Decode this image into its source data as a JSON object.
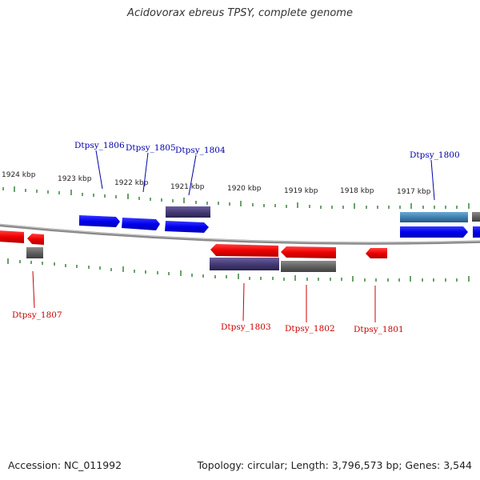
{
  "title": "Acidovorax ebreus TPSY, complete genome",
  "footer": {
    "accession": "Accession: NC_011992",
    "summary": "Topology: circular; Length: 3,796,573 bp; Genes: 3,544"
  },
  "colors": {
    "forward_gene": "#0000ee",
    "reverse_gene": "#ee0000",
    "forward_label": "#0000aa",
    "reverse_label": "#cc0000",
    "backbone": "#888888",
    "ticks": "#2a7a2a",
    "rna_purple": "#4a3f7a",
    "grey_feature": "#6a6a6a",
    "steel_feature": "#3f7fb0"
  },
  "scale_labels": [
    "1924 kbp",
    "1923 kbp",
    "1922 kbp",
    "1921 kbp",
    "1920 kbp",
    "1919 kbp",
    "1918 kbp",
    "1917 kbp"
  ],
  "genes_forward": [
    {
      "label": "Dtpsy_1806"
    },
    {
      "label": "Dtpsy_1805"
    },
    {
      "label": "Dtpsy_1804"
    },
    {
      "label": "Dtpsy_1800"
    }
  ],
  "genes_reverse": [
    {
      "label": "Dtpsy_1807"
    },
    {
      "label": "Dtpsy_1803"
    },
    {
      "label": "Dtpsy_1802"
    },
    {
      "label": "Dtpsy_1801"
    }
  ]
}
